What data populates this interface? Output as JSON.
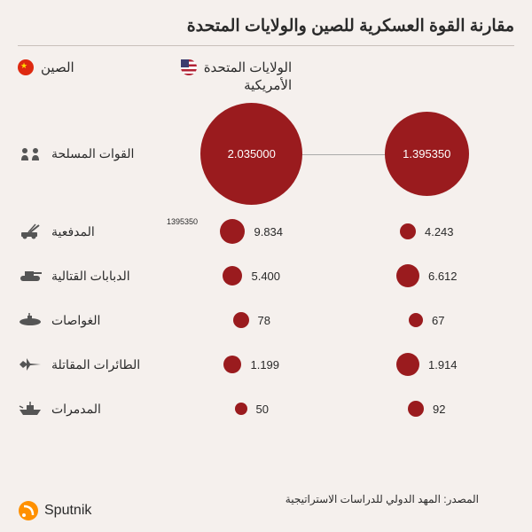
{
  "title": "مقارنة القوة العسكرية للصين والولايات المتحدة",
  "legend": {
    "china": "الصين",
    "usa": "الولايات المتحدة\nالأمريكية"
  },
  "annotation": "1395350",
  "source": "المصدر: المهد الدولي للدراسات الاستراتيجية",
  "brand": "Sputnik",
  "chart": {
    "type": "bubble-comparison",
    "bubble_color": "#9a1b1e",
    "background_color": "#f5f0ed",
    "text_color": "#2a2a2a",
    "title_fontsize": 19,
    "label_fontsize": 14,
    "value_fontsize": 13
  },
  "categories": [
    {
      "label": "القوات المسلحة",
      "icon": "soldiers-icon",
      "glyph": "👥",
      "china": "2.035000",
      "usa": "1.395350",
      "china_size": 115,
      "usa_size": 95,
      "inside": true
    },
    {
      "label": "المدفعية",
      "icon": "artillery-icon",
      "glyph": "🚀",
      "china": "9.834",
      "usa": "4.243",
      "china_size": 28,
      "usa_size": 18,
      "inside": false
    },
    {
      "label": "الدبابات القتالية",
      "icon": "tank-icon",
      "glyph": "🛡",
      "china": "5.400",
      "usa": "6.612",
      "china_size": 22,
      "usa_size": 26,
      "inside": false
    },
    {
      "label": "الغواصات",
      "icon": "submarine-icon",
      "glyph": "🚢",
      "china": "78",
      "usa": "67",
      "china_size": 18,
      "usa_size": 16,
      "inside": false
    },
    {
      "label": "الطائرات المقاتلة",
      "icon": "jet-icon",
      "glyph": "✈",
      "china": "1.199",
      "usa": "1.914",
      "china_size": 20,
      "usa_size": 26,
      "inside": false
    },
    {
      "label": "المدمرات",
      "icon": "destroyer-icon",
      "glyph": "🚢",
      "china": "50",
      "usa": "92",
      "china_size": 14,
      "usa_size": 18,
      "inside": false
    }
  ]
}
